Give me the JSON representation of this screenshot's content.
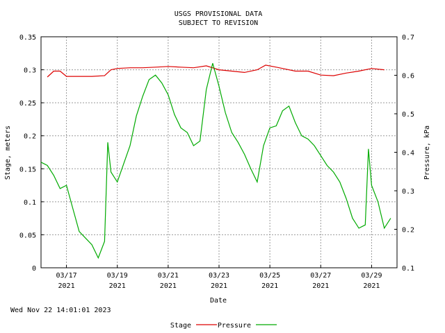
{
  "header": {
    "title_line1": "USGS PROVISIONAL DATA",
    "title_line2": "SUBJECT TO REVISION"
  },
  "footer": {
    "timestamp": "Wed Nov 22 14:01:01 2023"
  },
  "chart_data": {
    "type": "line",
    "xlabel": "Date",
    "ylabel_left": "Stage, meters",
    "ylabel_right": "Pressure, kPa",
    "xlim": [
      "2021-03-16",
      "2021-03-30"
    ],
    "ylim_left": [
      0,
      0.35
    ],
    "ylim_right": [
      0.1,
      0.7
    ],
    "grid": true,
    "legend_placement": "bottom-center",
    "left_ticks": [
      "0",
      "0.05",
      "0.1",
      "0.15",
      "0.2",
      "0.25",
      "0.3",
      "0.35"
    ],
    "right_ticks": [
      "0.1",
      "0.2",
      "0.3",
      "0.4",
      "0.5",
      "0.6",
      "0.7"
    ],
    "x_ticks": [
      {
        "date": "2021-03-17",
        "label": "03/17",
        "year": "2021"
      },
      {
        "date": "2021-03-19",
        "label": "03/19",
        "year": "2021"
      },
      {
        "date": "2021-03-21",
        "label": "03/21",
        "year": "2021"
      },
      {
        "date": "2021-03-23",
        "label": "03/23",
        "year": "2021"
      },
      {
        "date": "2021-03-25",
        "label": "03/25",
        "year": "2021"
      },
      {
        "date": "2021-03-27",
        "label": "03/27",
        "year": "2021"
      },
      {
        "date": "2021-03-29",
        "label": "03/29",
        "year": "2021"
      }
    ],
    "series": [
      {
        "name": "Stage",
        "color": "#dd0000",
        "axis": "left",
        "points": [
          [
            "2021-03-16T06:00",
            0.289
          ],
          [
            "2021-03-16T12:00",
            0.298
          ],
          [
            "2021-03-16T18:00",
            0.298
          ],
          [
            "2021-03-17T00:00",
            0.29
          ],
          [
            "2021-03-17T12:00",
            0.29
          ],
          [
            "2021-03-18T00:00",
            0.29
          ],
          [
            "2021-03-18T12:00",
            0.291
          ],
          [
            "2021-03-18T18:00",
            0.3
          ],
          [
            "2021-03-19T00:00",
            0.302
          ],
          [
            "2021-03-19T12:00",
            0.303
          ],
          [
            "2021-03-20T00:00",
            0.303
          ],
          [
            "2021-03-20T12:00",
            0.304
          ],
          [
            "2021-03-21T00:00",
            0.305
          ],
          [
            "2021-03-21T12:00",
            0.304
          ],
          [
            "2021-03-22T00:00",
            0.303
          ],
          [
            "2021-03-22T12:00",
            0.306
          ],
          [
            "2021-03-23T00:00",
            0.3
          ],
          [
            "2021-03-23T12:00",
            0.298
          ],
          [
            "2021-03-24T00:00",
            0.296
          ],
          [
            "2021-03-24T12:00",
            0.3
          ],
          [
            "2021-03-24T20:00",
            0.307
          ],
          [
            "2021-03-25T06:00",
            0.304
          ],
          [
            "2021-03-25T12:00",
            0.302
          ],
          [
            "2021-03-26T00:00",
            0.298
          ],
          [
            "2021-03-26T12:00",
            0.298
          ],
          [
            "2021-03-27T00:00",
            0.292
          ],
          [
            "2021-03-27T12:00",
            0.291
          ],
          [
            "2021-03-28T00:00",
            0.295
          ],
          [
            "2021-03-28T12:00",
            0.298
          ],
          [
            "2021-03-29T00:00",
            0.302
          ],
          [
            "2021-03-29T12:00",
            0.3
          ]
        ]
      },
      {
        "name": "Pressure",
        "color": "#00aa00",
        "axis": "left",
        "points": [
          [
            "2021-03-16T00:00",
            0.16
          ],
          [
            "2021-03-16T06:00",
            0.155
          ],
          [
            "2021-03-16T12:00",
            0.14
          ],
          [
            "2021-03-16T18:00",
            0.12
          ],
          [
            "2021-03-17T00:00",
            0.125
          ],
          [
            "2021-03-17T06:00",
            0.09
          ],
          [
            "2021-03-17T12:00",
            0.055
          ],
          [
            "2021-03-17T18:00",
            0.045
          ],
          [
            "2021-03-18T00:00",
            0.035
          ],
          [
            "2021-03-18T06:00",
            0.015
          ],
          [
            "2021-03-18T12:00",
            0.04
          ],
          [
            "2021-03-18T15:00",
            0.19
          ],
          [
            "2021-03-18T18:00",
            0.145
          ],
          [
            "2021-03-19T00:00",
            0.13
          ],
          [
            "2021-03-19T12:00",
            0.185
          ],
          [
            "2021-03-19T18:00",
            0.23
          ],
          [
            "2021-03-20T00:00",
            0.26
          ],
          [
            "2021-03-20T06:00",
            0.285
          ],
          [
            "2021-03-20T12:00",
            0.292
          ],
          [
            "2021-03-20T18:00",
            0.28
          ],
          [
            "2021-03-21T00:00",
            0.262
          ],
          [
            "2021-03-21T06:00",
            0.232
          ],
          [
            "2021-03-21T12:00",
            0.212
          ],
          [
            "2021-03-21T18:00",
            0.205
          ],
          [
            "2021-03-22T00:00",
            0.185
          ],
          [
            "2021-03-22T06:00",
            0.192
          ],
          [
            "2021-03-22T12:00",
            0.27
          ],
          [
            "2021-03-22T18:00",
            0.31
          ],
          [
            "2021-03-23T00:00",
            0.275
          ],
          [
            "2021-03-23T06:00",
            0.235
          ],
          [
            "2021-03-23T12:00",
            0.205
          ],
          [
            "2021-03-23T18:00",
            0.19
          ],
          [
            "2021-03-24T00:00",
            0.172
          ],
          [
            "2021-03-24T06:00",
            0.15
          ],
          [
            "2021-03-24T12:00",
            0.13
          ],
          [
            "2021-03-24T18:00",
            0.185
          ],
          [
            "2021-03-25T00:00",
            0.212
          ],
          [
            "2021-03-25T06:00",
            0.215
          ],
          [
            "2021-03-25T12:00",
            0.238
          ],
          [
            "2021-03-25T18:00",
            0.245
          ],
          [
            "2021-03-26T00:00",
            0.22
          ],
          [
            "2021-03-26T06:00",
            0.2
          ],
          [
            "2021-03-26T12:00",
            0.195
          ],
          [
            "2021-03-26T18:00",
            0.185
          ],
          [
            "2021-03-27T00:00",
            0.17
          ],
          [
            "2021-03-27T06:00",
            0.155
          ],
          [
            "2021-03-27T12:00",
            0.145
          ],
          [
            "2021-03-27T18:00",
            0.13
          ],
          [
            "2021-03-28T00:00",
            0.105
          ],
          [
            "2021-03-28T06:00",
            0.075
          ],
          [
            "2021-03-28T12:00",
            0.06
          ],
          [
            "2021-03-28T18:00",
            0.065
          ],
          [
            "2021-03-28T21:00",
            0.18
          ],
          [
            "2021-03-29T00:00",
            0.125
          ],
          [
            "2021-03-29T06:00",
            0.1
          ],
          [
            "2021-03-29T12:00",
            0.06
          ],
          [
            "2021-03-29T18:00",
            0.075
          ]
        ]
      }
    ]
  }
}
